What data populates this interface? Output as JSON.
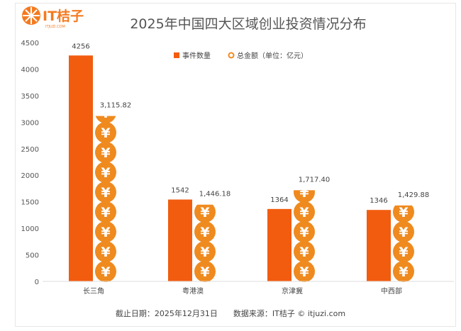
{
  "logo": {
    "brand": "IT桔子",
    "sub": "ITJUZI.COM"
  },
  "chart_data": {
    "type": "bar",
    "title": "2025年中国四大区域创业投资情况分布",
    "categories": [
      "长三角",
      "粤港澳",
      "京津冀",
      "中西部"
    ],
    "series": [
      {
        "name": "事件数量",
        "values": [
          4256,
          1542,
          1364,
          1346
        ],
        "labels": [
          "4256",
          "1542",
          "1364",
          "1346"
        ],
        "color": "#f25c0f",
        "style": "bar"
      },
      {
        "name": "总金额（单位：亿元）",
        "values": [
          3115.82,
          1446.18,
          1717.4,
          1429.88
        ],
        "labels": [
          "3,115.82",
          "1,446.18",
          "1,717.40",
          "1,429.88"
        ],
        "color": "#ef8a1f",
        "style": "pictograph-yuan-coin"
      }
    ],
    "yticks": [
      0,
      500,
      1000,
      1500,
      2000,
      2500,
      3000,
      3500,
      4000,
      4500
    ],
    "ylim": [
      0,
      4500
    ],
    "grid": false,
    "legend": "top-center"
  },
  "footer": "截止日期：2025年12月31日　　数据来源：IT桔子 © itjuzi.com"
}
